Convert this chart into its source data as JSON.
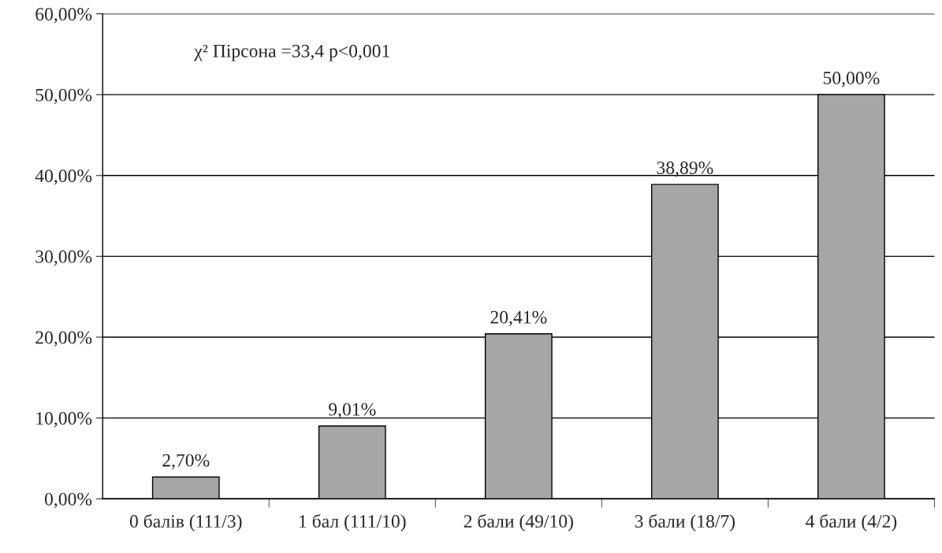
{
  "chart_data": {
    "type": "bar",
    "categories": [
      "0 балів (111/3)",
      "1 бал (111/10)",
      "2 бали (49/10)",
      "3 бали (18/7)",
      "4 бали (4/2)"
    ],
    "values": [
      2.7,
      9.01,
      20.41,
      38.89,
      50.0
    ],
    "value_labels": [
      "2,70%",
      "9,01%",
      "20,41%",
      "38,89%",
      "50,00%"
    ],
    "color": "#a6a6a6",
    "ylim": [
      0,
      60
    ],
    "yticks": [
      {
        "value": 0,
        "label": "0,00%"
      },
      {
        "value": 10,
        "label": "10,00%"
      },
      {
        "value": 20,
        "label": "20,00%"
      },
      {
        "value": 30,
        "label": "30,00%"
      },
      {
        "value": 40,
        "label": "40,00%"
      },
      {
        "value": 50,
        "label": "50,00%"
      },
      {
        "value": 60,
        "label": "60,00%"
      }
    ],
    "grid": "y",
    "annotations": [
      "χ² Пірсона =33,4 p<0,001"
    ]
  }
}
